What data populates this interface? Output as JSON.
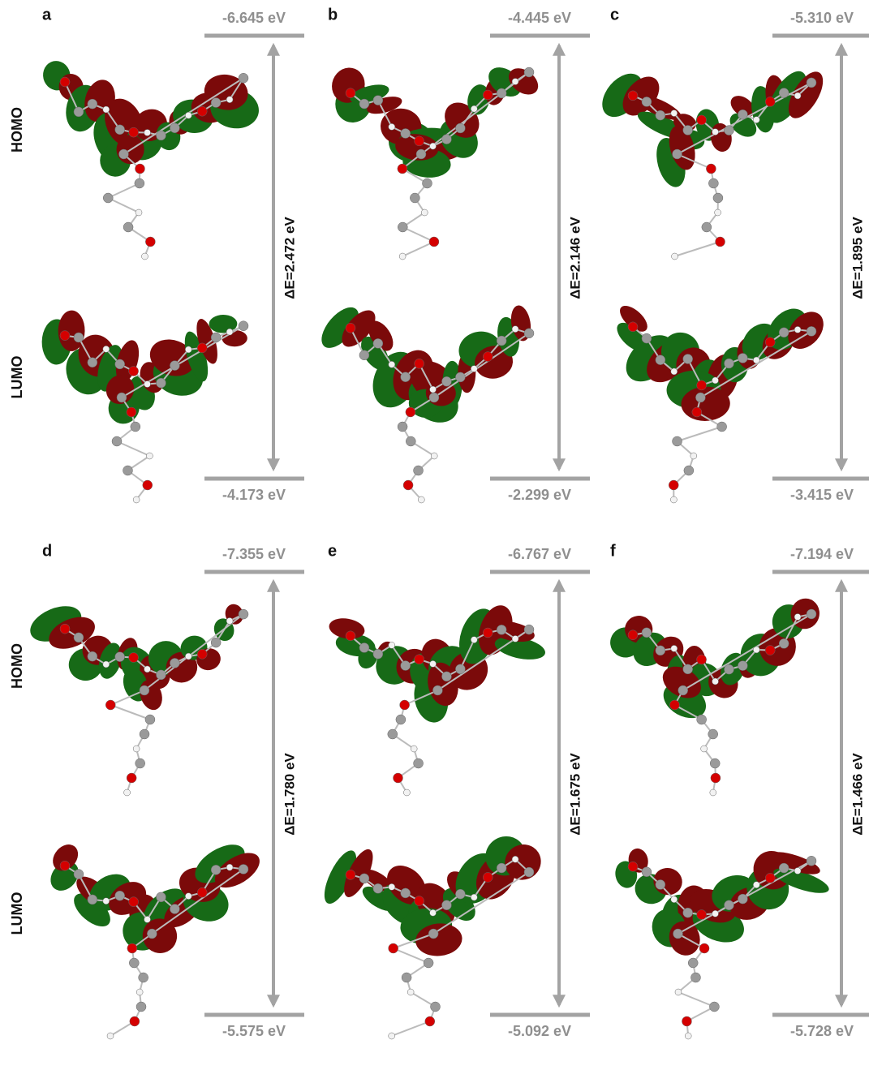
{
  "row_labels": {
    "homo": "HOMO",
    "lumo": "LUMO"
  },
  "panels": [
    {
      "label": "a",
      "homo": "-6.645 eV",
      "lumo": "-4.173 eV",
      "gap": "ΔE=2.472 eV"
    },
    {
      "label": "b",
      "homo": "-4.445 eV",
      "lumo": "-2.299 eV",
      "gap": "ΔE=2.146 eV"
    },
    {
      "label": "c",
      "homo": "-5.310 eV",
      "lumo": "-3.415 eV",
      "gap": "ΔE=1.895 eV"
    },
    {
      "label": "d",
      "homo": "-7.355 eV",
      "lumo": "-5.575 eV",
      "gap": "ΔE=1.780 eV"
    },
    {
      "label": "e",
      "homo": "-6.767 eV",
      "lumo": "-5.092 eV",
      "gap": "ΔE=1.675 eV"
    },
    {
      "label": "f",
      "homo": "-7.194 eV",
      "lumo": "-5.728 eV",
      "gap": "ΔE=1.466 eV"
    }
  ]
}
